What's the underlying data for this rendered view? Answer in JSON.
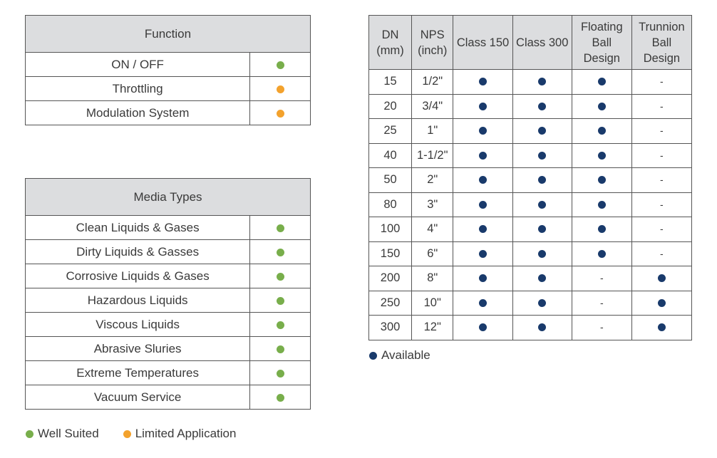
{
  "colors": {
    "well_suited": "#78ae4b",
    "limited": "#f3a22d",
    "available": "#193a6b",
    "header_bg": "#dcdddf"
  },
  "function_table": {
    "header": "Function",
    "rows": [
      {
        "label": "ON / OFF",
        "status": "well_suited"
      },
      {
        "label": "Throttling",
        "status": "limited"
      },
      {
        "label": "Modulation System",
        "status": "limited"
      }
    ]
  },
  "media_table": {
    "header": "Media Types",
    "rows": [
      {
        "label": "Clean Liquids & Gases",
        "status": "well_suited"
      },
      {
        "label": "Dirty Liquids & Gasses",
        "status": "well_suited"
      },
      {
        "label": "Corrosive Liquids & Gases",
        "status": "well_suited"
      },
      {
        "label": "Hazardous Liquids",
        "status": "well_suited"
      },
      {
        "label": "Viscous Liquids",
        "status": "well_suited"
      },
      {
        "label": "Abrasive Sluries",
        "status": "well_suited"
      },
      {
        "label": "Extreme Temperatures",
        "status": "well_suited"
      },
      {
        "label": "Vacuum Service",
        "status": "well_suited"
      }
    ]
  },
  "size_table": {
    "headers": [
      [
        "DN",
        "(mm)"
      ],
      [
        "NPS",
        "(inch)"
      ],
      [
        "Class 150"
      ],
      [
        "Class 300"
      ],
      [
        "Floating",
        "Ball",
        "Design"
      ],
      [
        "Trunnion",
        "Ball",
        "Design"
      ]
    ],
    "dash": "-",
    "rows": [
      {
        "dn": "15",
        "nps": "1/2\"",
        "class150": true,
        "class300": true,
        "floating": true,
        "trunnion": false
      },
      {
        "dn": "20",
        "nps": "3/4\"",
        "class150": true,
        "class300": true,
        "floating": true,
        "trunnion": false
      },
      {
        "dn": "25",
        "nps": "1\"",
        "class150": true,
        "class300": true,
        "floating": true,
        "trunnion": false
      },
      {
        "dn": "40",
        "nps": "1-1/2\"",
        "class150": true,
        "class300": true,
        "floating": true,
        "trunnion": false
      },
      {
        "dn": "50",
        "nps": "2\"",
        "class150": true,
        "class300": true,
        "floating": true,
        "trunnion": false
      },
      {
        "dn": "80",
        "nps": "3\"",
        "class150": true,
        "class300": true,
        "floating": true,
        "trunnion": false
      },
      {
        "dn": "100",
        "nps": "4\"",
        "class150": true,
        "class300": true,
        "floating": true,
        "trunnion": false
      },
      {
        "dn": "150",
        "nps": "6\"",
        "class150": true,
        "class300": true,
        "floating": true,
        "trunnion": false
      },
      {
        "dn": "200",
        "nps": "8\"",
        "class150": true,
        "class300": true,
        "floating": false,
        "trunnion": true
      },
      {
        "dn": "250",
        "nps": "10\"",
        "class150": true,
        "class300": true,
        "floating": false,
        "trunnion": true
      },
      {
        "dn": "300",
        "nps": "12\"",
        "class150": true,
        "class300": true,
        "floating": false,
        "trunnion": true
      }
    ]
  },
  "legend": {
    "well_suited": "Well Suited",
    "limited": "Limited Application",
    "available": "Available"
  }
}
